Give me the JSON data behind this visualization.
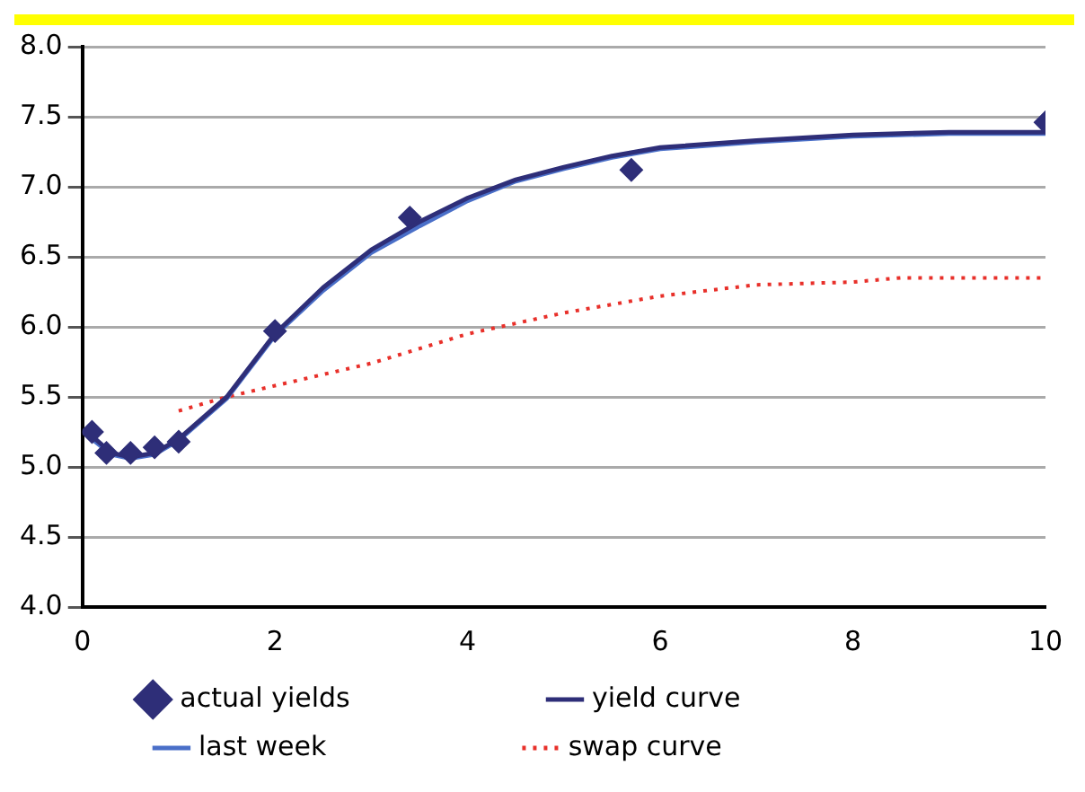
{
  "chart_data": {
    "type": "line",
    "xlim": [
      0,
      10
    ],
    "xticks": [
      0,
      2,
      4,
      6,
      8,
      10
    ],
    "ylim": [
      4.0,
      8.0
    ],
    "yticks": [
      {
        "value": 4.0,
        "label": "4.0"
      },
      {
        "value": 4.5,
        "label": "4.5"
      },
      {
        "value": 5.0,
        "label": "5.0"
      },
      {
        "value": 5.5,
        "label": "5.5"
      },
      {
        "value": 6.0,
        "label": "6.0"
      },
      {
        "value": 6.5,
        "label": "6.5"
      },
      {
        "value": 7.0,
        "label": "7.0"
      },
      {
        "value": 7.5,
        "label": "7.5"
      },
      {
        "value": 8.0,
        "label": "8.0"
      }
    ],
    "grid": "y",
    "legend": "bottom",
    "series": [
      {
        "name": "actual yields",
        "type": "scatter",
        "marker": "diamond",
        "color": "#2e2e78",
        "x": [
          0.1,
          0.25,
          0.5,
          0.75,
          1.0,
          2.0,
          3.4,
          5.7,
          10
        ],
        "values": [
          5.25,
          5.1,
          5.1,
          5.14,
          5.18,
          5.97,
          6.78,
          7.12,
          7.46
        ]
      },
      {
        "name": "yield curve",
        "type": "line",
        "marker": "none",
        "line_style": "solid",
        "color": "#2e2e78",
        "x": [
          0.1,
          0.3,
          0.5,
          0.75,
          1.0,
          1.5,
          2,
          2.5,
          3,
          3.5,
          4,
          4.5,
          5,
          5.5,
          6,
          7,
          8,
          9,
          10
        ],
        "values": [
          5.22,
          5.1,
          5.07,
          5.1,
          5.2,
          5.5,
          5.95,
          6.28,
          6.55,
          6.75,
          6.92,
          7.05,
          7.14,
          7.22,
          7.28,
          7.33,
          7.37,
          7.39,
          7.39
        ]
      },
      {
        "name": "last week",
        "type": "line",
        "marker": "none",
        "line_style": "solid",
        "color": "#4a6fc8",
        "x": [
          0.1,
          0.3,
          0.5,
          0.75,
          1.0,
          1.5,
          2,
          2.5,
          3,
          3.5,
          4,
          4.5,
          5,
          5.5,
          6,
          7,
          8,
          9,
          10
        ],
        "values": [
          5.2,
          5.09,
          5.06,
          5.09,
          5.19,
          5.49,
          5.94,
          6.26,
          6.53,
          6.72,
          6.9,
          7.04,
          7.13,
          7.21,
          7.27,
          7.32,
          7.36,
          7.38,
          7.38
        ]
      },
      {
        "name": "swap curve",
        "type": "line",
        "marker": "none",
        "line_style": "dotted",
        "color": "#e8302a",
        "x": [
          1,
          1.5,
          2,
          3,
          4,
          5,
          6,
          7,
          8,
          8.5,
          10
        ],
        "values": [
          5.4,
          5.5,
          5.58,
          5.74,
          5.95,
          6.1,
          6.22,
          6.3,
          6.32,
          6.35,
          6.35
        ]
      }
    ]
  }
}
